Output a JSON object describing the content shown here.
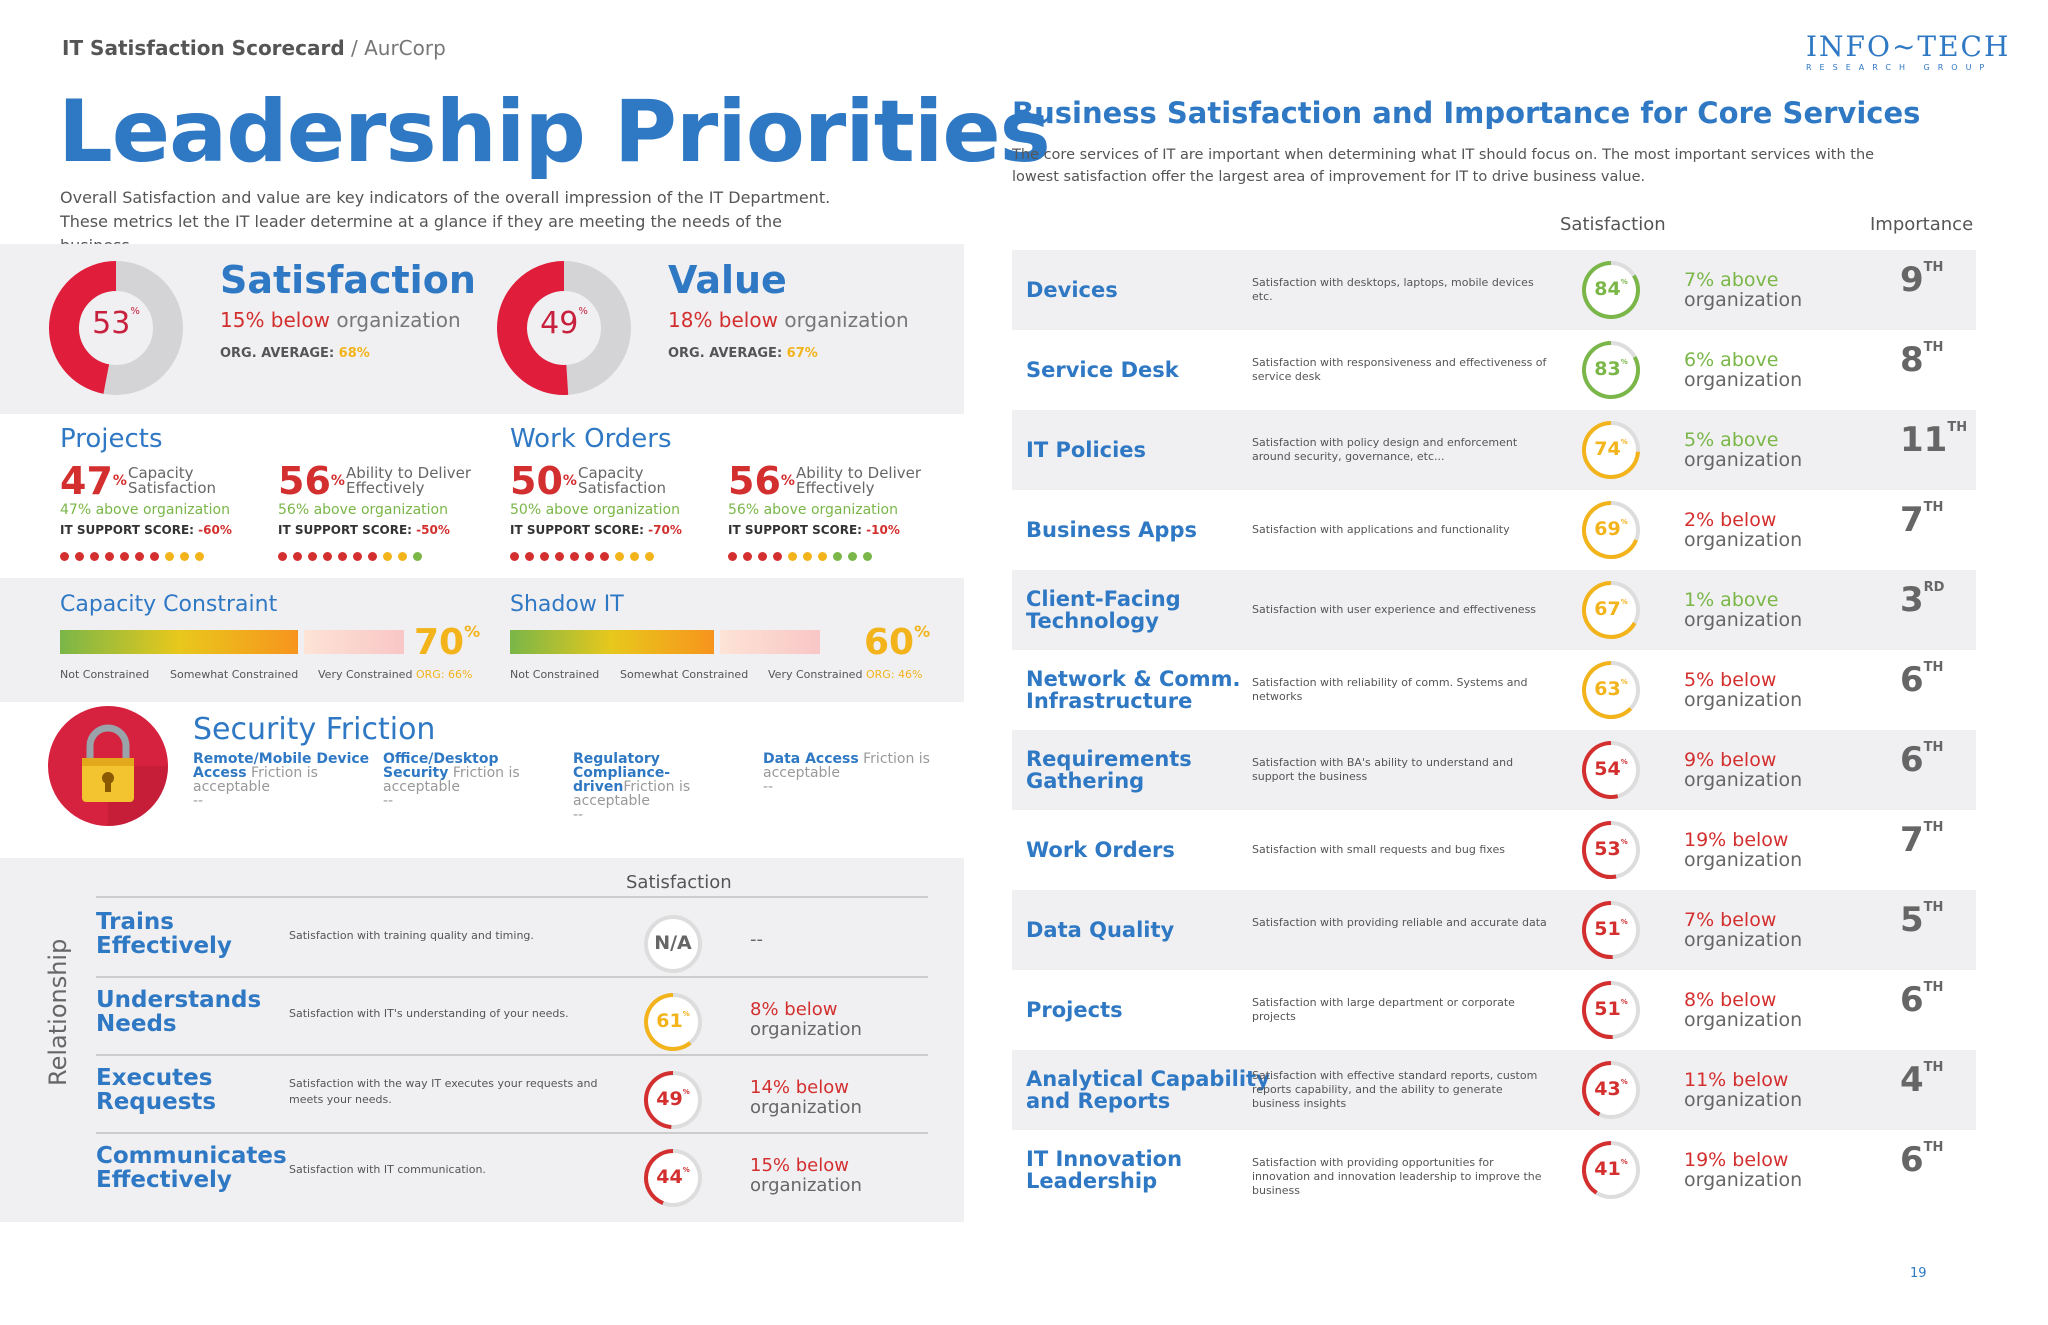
{
  "header": {
    "report_title": "IT Satisfaction Scorecard",
    "separator": " / ",
    "company": "AurCorp",
    "logo_line1": "INFO~TECH",
    "logo_line2": "RESEARCH GROUP"
  },
  "page_title": "Leadership Priorities",
  "intro_line1": "Overall Satisfaction and value are key indicators of the overall impression of the IT Department.",
  "intro_line2": "These metrics let the IT leader determine at a glance if they are meeting the needs of the business.",
  "colors": {
    "blue": "#2f78c4",
    "red": "#d32f2f",
    "yellow": "#f2b31b",
    "green": "#7ab648",
    "grey_band": "#f0f0f2"
  },
  "kpis": [
    {
      "title": "Satisfaction",
      "value": "53",
      "fraction": 0.53,
      "diff": "15% below",
      "diff_rest": " organization",
      "avg_label": "ORG. AVERAGE: ",
      "avg_value": "68%"
    },
    {
      "title": "Value",
      "value": "49",
      "fraction": 0.49,
      "diff": "18% below",
      "diff_rest": " organization",
      "avg_label": "ORG. AVERAGE: ",
      "avg_value": "67%"
    }
  ],
  "projects": {
    "title": "Projects",
    "items": [
      {
        "pct": "47",
        "label1": "Capacity",
        "label2": "Satisfaction",
        "comparison": "47% above organization",
        "score_label": "IT SUPPORT SCORE: ",
        "score": "-60%",
        "dots": [
          "r",
          "r",
          "r",
          "r",
          "r",
          "r",
          "r",
          "y",
          "y",
          "y"
        ]
      },
      {
        "pct": "56",
        "label1": "Ability to Deliver",
        "label2": "Effectively",
        "comparison": "56% above organization",
        "score_label": "IT SUPPORT SCORE: ",
        "score": "-50%",
        "dots": [
          "r",
          "r",
          "r",
          "r",
          "r",
          "r",
          "r",
          "y",
          "y",
          "g"
        ]
      }
    ]
  },
  "work_orders": {
    "title": "Work Orders",
    "items": [
      {
        "pct": "50",
        "label1": "Capacity",
        "label2": "Satisfaction",
        "comparison": "50% above organization",
        "score_label": "IT SUPPORT SCORE: ",
        "score": "-70%",
        "dots": [
          "r",
          "r",
          "r",
          "r",
          "r",
          "r",
          "r",
          "y",
          "y",
          "y"
        ]
      },
      {
        "pct": "56",
        "label1": "Ability to Deliver",
        "label2": "Effectively",
        "comparison": "56% above organization",
        "score_label": "IT SUPPORT SCORE: ",
        "score": "-10%",
        "dots": [
          "r",
          "r",
          "r",
          "r",
          "y",
          "y",
          "y",
          "g",
          "g",
          "g"
        ]
      }
    ]
  },
  "constraints": [
    {
      "title": "Capacity Constraint",
      "pct": "70",
      "fill": 0.7,
      "l1": "Not Constrained",
      "l2": "Somewhat Constrained",
      "l3": "Very Constrained",
      "org": "ORG: 66%"
    },
    {
      "title": "Shadow IT",
      "pct": "60",
      "fill": 0.6,
      "l1": "Not Constrained",
      "l2": "Somewhat Constrained",
      "l3": "Very Constrained",
      "org": "ORG: 46%"
    }
  ],
  "security": {
    "title": "Security Friction",
    "icon": "lock-icon",
    "items": [
      {
        "bold1": "Remote/Mobile Device",
        "bold2": "Access",
        "rest": " Friction is acceptable",
        "dash": "--"
      },
      {
        "bold1": "Office/Desktop",
        "bold2": "Security",
        "rest": " Friction is acceptable",
        "dash": "--"
      },
      {
        "bold1": "Regulatory",
        "bold2": "Compliance-driven",
        "rest": "Friction is acceptable",
        "dash": "--"
      },
      {
        "bold1": "Data Access",
        "bold2": "",
        "rest": " Friction is acceptable",
        "dash": "--"
      }
    ]
  },
  "relationship": {
    "side_label": "Relationship",
    "col_header": "Satisfaction",
    "rows": [
      {
        "name1": "Trains",
        "name2": "Effectively",
        "desc": "Satisfaction with training quality and timing.",
        "value": "N/A",
        "na": true,
        "c1": "--",
        "c2": "",
        "tone": "na"
      },
      {
        "name1": "Understands",
        "name2": "Needs",
        "desc": "Satisfaction with IT's understanding of your needs.",
        "value": "61",
        "fraction": 0.61,
        "c1": "8% below",
        "c2": "organization",
        "tone": "y"
      },
      {
        "name1": "Executes",
        "name2": "Requests",
        "desc": "Satisfaction with the way IT executes your requests and meets your needs.",
        "value": "49",
        "fraction": 0.49,
        "c1": "14% below",
        "c2": "organization",
        "tone": "r"
      },
      {
        "name1": "Communicates",
        "name2": "Effectively",
        "desc": "Satisfaction with IT communication.",
        "value": "44",
        "fraction": 0.44,
        "c1": "15% below",
        "c2": "organization",
        "tone": "r"
      }
    ]
  },
  "core": {
    "title": "Business Satisfaction and Importance for Core Services",
    "intro": "The core services of IT are important when determining what IT should focus on. The most important services with the lowest satisfaction offer the largest area of improvement for IT to drive business value.",
    "col_satisfaction": "Satisfaction",
    "col_importance": "Importance",
    "rows": [
      {
        "name1": "Devices",
        "name2": "",
        "desc": "Satisfaction with desktops, laptops, mobile devices etc.",
        "value": "84",
        "fraction": 0.84,
        "tone": "g",
        "c1": "7% above",
        "c2": "organization",
        "rank": "9",
        "suffix": "TH"
      },
      {
        "name1": "Service Desk",
        "name2": "",
        "desc": "Satisfaction with responsiveness and effectiveness of service desk",
        "value": "83",
        "fraction": 0.83,
        "tone": "g",
        "c1": "6% above",
        "c2": "organization",
        "rank": "8",
        "suffix": "TH"
      },
      {
        "name1": "IT Policies",
        "name2": "",
        "desc": "Satisfaction with policy design and enforcement around security, governance, etc...",
        "value": "74",
        "fraction": 0.74,
        "tone": "y",
        "c1": "5% above",
        "c2": "organization",
        "rank": "11",
        "suffix": "TH"
      },
      {
        "name1": "Business Apps",
        "name2": "",
        "desc": "Satisfaction with applications and functionality",
        "value": "69",
        "fraction": 0.69,
        "tone": "y",
        "c1": "2% below",
        "c2": "organization",
        "rank": "7",
        "suffix": "TH"
      },
      {
        "name1": "Client-Facing",
        "name2": "Technology",
        "desc": "Satisfaction with user experience and effectiveness",
        "value": "67",
        "fraction": 0.67,
        "tone": "y",
        "c1": "1% above",
        "c2": "organization",
        "rank": "3",
        "suffix": "RD"
      },
      {
        "name1": "Network & Comm.",
        "name2": "Infrastructure",
        "desc": "Satisfaction with reliability of comm. Systems and networks",
        "value": "63",
        "fraction": 0.63,
        "tone": "y",
        "c1": "5% below",
        "c2": "organization",
        "rank": "6",
        "suffix": "TH"
      },
      {
        "name1": "Requirements",
        "name2": "Gathering",
        "desc": "Satisfaction with BA's ability to understand and support the business",
        "value": "54",
        "fraction": 0.54,
        "tone": "r",
        "c1": "9% below",
        "c2": "organization",
        "rank": "6",
        "suffix": "TH"
      },
      {
        "name1": "Work Orders",
        "name2": "",
        "desc": "Satisfaction with small requests and bug fixes",
        "value": "53",
        "fraction": 0.53,
        "tone": "r",
        "c1": "19% below",
        "c2": "organization",
        "rank": "7",
        "suffix": "TH"
      },
      {
        "name1": "Data Quality",
        "name2": "",
        "desc": "Satisfaction with providing reliable and accurate data",
        "value": "51",
        "fraction": 0.51,
        "tone": "r",
        "c1": "7% below",
        "c2": "organization",
        "rank": "5",
        "suffix": "TH"
      },
      {
        "name1": "Projects",
        "name2": "",
        "desc": "Satisfaction with large department or corporate projects",
        "value": "51",
        "fraction": 0.51,
        "tone": "r",
        "c1": "8% below",
        "c2": "organization",
        "rank": "6",
        "suffix": "TH"
      },
      {
        "name1": "Analytical Capability",
        "name2": "and Reports",
        "desc": "Satisfaction with effective standard reports, custom reports capability, and the ability to generate business insights",
        "value": "43",
        "fraction": 0.43,
        "tone": "r",
        "c1": "11% below",
        "c2": "organization",
        "rank": "4",
        "suffix": "TH"
      },
      {
        "name1": "IT Innovation",
        "name2": "Leadership",
        "desc": "Satisfaction with providing opportunities for innovation and innovation leadership to improve the business",
        "value": "41",
        "fraction": 0.41,
        "tone": "r",
        "c1": "19% below",
        "c2": "organization",
        "rank": "6",
        "suffix": "TH"
      }
    ]
  },
  "page_number": "19"
}
